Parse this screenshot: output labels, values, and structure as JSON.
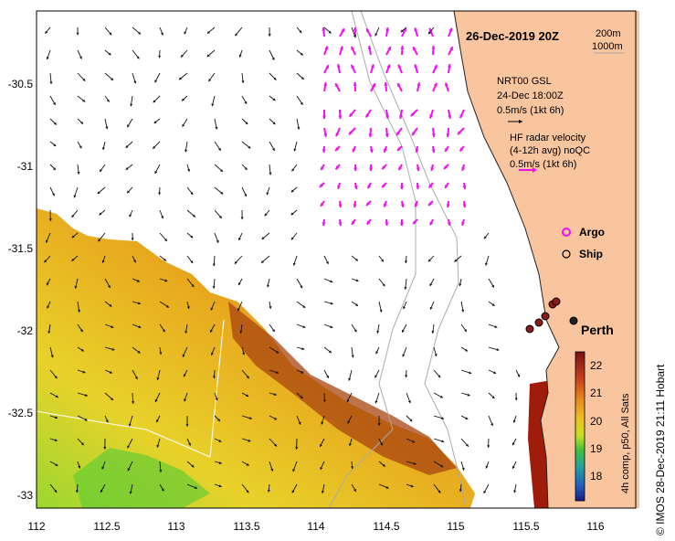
{
  "title": "26-Dec-2019 20Z",
  "isobath_legend": [
    "200m",
    "1000m"
  ],
  "model": {
    "name": "NRT00 GSL",
    "time": "24-Dec 18:00Z",
    "scale": "0.5m/s (1kt 6h)"
  },
  "radar": {
    "line1": "HF radar velocity",
    "line2": "(4-12h avg) noQC",
    "scale": "0.5m/s (1kt 6h)"
  },
  "legend": {
    "argo": "Argo",
    "ship": "Ship"
  },
  "place": "Perth",
  "colorbar": {
    "ticks": [
      "22",
      "21",
      "20",
      "19",
      "18"
    ],
    "label": "4h comp, p50, All Sats"
  },
  "axes": {
    "lon": [
      "112",
      "112.5",
      "113",
      "113.5",
      "114",
      "114.5",
      "115",
      "115.5",
      "116"
    ],
    "lat": [
      "-30.5",
      "-31",
      "-31.5",
      "-32",
      "-32.5",
      "-33"
    ]
  },
  "credit": "© IMOS 28-Dec-2019 21:11 Hobart",
  "colors": {
    "land": "#f9c59f",
    "radar_arrow": "#ee11ee",
    "ship_dot": "#8b1a1a"
  }
}
